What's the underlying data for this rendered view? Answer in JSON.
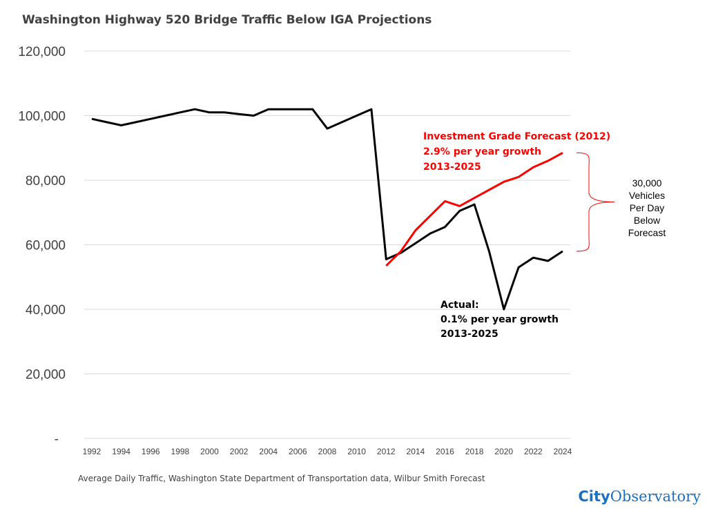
{
  "chart_data": {
    "type": "line",
    "title": "Washington Highway 520 Bridge Traffic Below IGA Projections",
    "xlabel": "",
    "ylabel": "",
    "ylim": [
      0,
      120000
    ],
    "xlim": [
      1992,
      2024
    ],
    "yticks": [
      0,
      20000,
      40000,
      60000,
      80000,
      100000,
      120000
    ],
    "ytick_labels": [
      "-",
      "20,000",
      "40,000",
      "60,000",
      "80,000",
      "100,000",
      "120,000"
    ],
    "xticks": [
      "1992",
      "1994",
      "1996",
      "1998",
      "2000",
      "2002",
      "2004",
      "2006",
      "2008",
      "2010",
      "2012",
      "2014",
      "2016",
      "2018",
      "2020",
      "2022",
      "2024"
    ],
    "grid": "horizontal",
    "legend": "none",
    "series": [
      {
        "color": "#000000",
        "x": [
          1992,
          1993,
          1994,
          1995,
          1996,
          1997,
          1998,
          1999,
          2000,
          2001,
          2002,
          2003,
          2004,
          2005,
          2006,
          2007,
          2008,
          2009,
          2010,
          2011,
          2012,
          2013,
          2014,
          2015,
          2016,
          2017,
          2018,
          2019,
          2020,
          2021,
          2022,
          2023,
          2024
        ],
        "values": [
          99000,
          98000,
          97000,
          98000,
          99000,
          100000,
          101000,
          102000,
          101000,
          101000,
          100500,
          100000,
          102000,
          102000,
          102000,
          102000,
          96000,
          98000,
          100000,
          102000,
          55500,
          57500,
          60500,
          63500,
          65500,
          70500,
          72500,
          58000,
          40000,
          53000,
          56000,
          55000,
          58000
        ]
      },
      {
        "color": "#ff0000",
        "x": [
          2012,
          2013,
          2014,
          2015,
          2016,
          2017,
          2018,
          2019,
          2020,
          2021,
          2022,
          2023,
          2024
        ],
        "values": [
          53500,
          58000,
          64500,
          69000,
          73500,
          72000,
          74500,
          77000,
          79500,
          81000,
          84000,
          86000,
          88500
        ]
      }
    ],
    "annotations": {
      "forecast": [
        "Investment Grade Forecast (2012)",
        "2.9% per year growth",
        "2013-2025"
      ],
      "actual": [
        "Actual:",
        "0.1% per year growth",
        "2013-2025"
      ],
      "gap": [
        "30,000",
        "Vehicles",
        "Per Day",
        "Below",
        "Forecast"
      ]
    },
    "source": "Average Daily Traffic, Washington State Department of Transportation data, Wilbur Smith Forecast",
    "brand": {
      "part1": "City",
      "part2": "Observatory",
      "color1": "#1a6fc4",
      "color2": "#1a6fc4"
    },
    "colors": {
      "grid": "#d9d9d9",
      "actual": "#000000",
      "forecast": "#ff0000",
      "text": "#404040"
    }
  }
}
